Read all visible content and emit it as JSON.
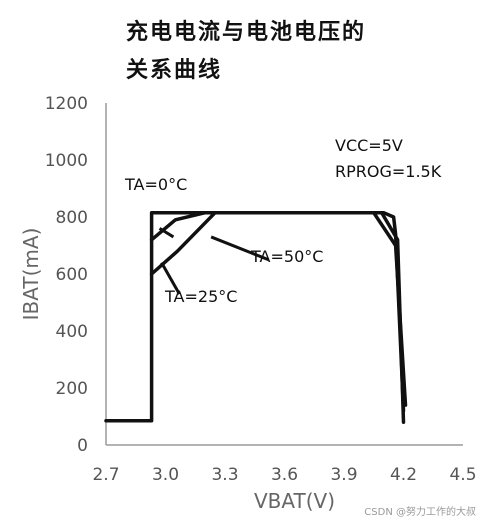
{
  "title_line1": "充电电流与电池电压的",
  "title_line2": "关系曲线",
  "watermark": "CSDN @努力工作的大叔",
  "chart_data": {
    "type": "line",
    "title": "充电电流与电池电压的关系曲线",
    "xlabel": "VBAT(V)",
    "ylabel": "IBAT(mA)",
    "xlim": [
      2.7,
      4.5
    ],
    "ylim": [
      0,
      1200
    ],
    "xticks": [
      2.7,
      3.0,
      3.3,
      3.6,
      3.9,
      4.2,
      4.5
    ],
    "xtick_labels": [
      "2.7",
      "3.0",
      "3.3",
      "3.6",
      "3.9",
      "4.2",
      "4.5"
    ],
    "yticks": [
      0,
      200,
      400,
      600,
      800,
      1000,
      1200
    ],
    "ytick_labels": [
      "0",
      "200",
      "400",
      "600",
      "800",
      "1000",
      "1200"
    ],
    "grid": false,
    "line_color": "#111111",
    "series": [
      {
        "name": "TA=0°C",
        "x": [
          2.7,
          2.93,
          2.93,
          4.1,
          4.15,
          4.16,
          4.2
        ],
        "y": [
          85,
          85,
          815,
          815,
          800,
          740,
          120
        ]
      },
      {
        "name": "TA=25°C",
        "x": [
          2.93,
          2.93,
          3.05,
          3.2,
          4.09,
          4.17,
          4.2
        ],
        "y": [
          720,
          720,
          790,
          815,
          815,
          720,
          80
        ]
      },
      {
        "name": "TA=50°C",
        "x": [
          2.93,
          3.06,
          3.25,
          4.05,
          4.16,
          4.21
        ],
        "y": [
          600,
          680,
          815,
          815,
          700,
          140
        ]
      }
    ],
    "annotations": [
      {
        "text": "TA=0°C"
      },
      {
        "text": "TA=25°C"
      },
      {
        "text": "TA=50°C"
      },
      {
        "text": "VCC=5V"
      },
      {
        "text": "RPROG=1.5K"
      }
    ]
  }
}
